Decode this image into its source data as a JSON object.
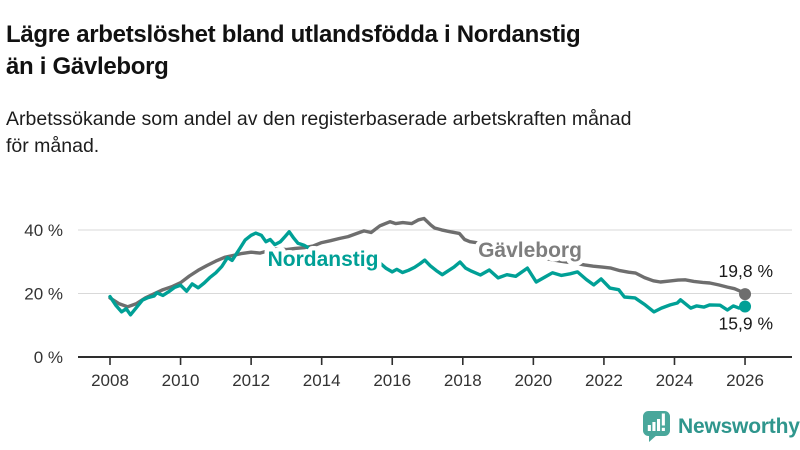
{
  "header": {
    "title_lines": [
      "Lägre arbetslöshet bland utlandsfödda i Nordanstig",
      "än i Gävleborg"
    ],
    "subtitle_lines": [
      "Arbetssökande som andel av den registerbaserade arbetskraften månad",
      "för månad."
    ]
  },
  "branding": {
    "name": "Newsworthy",
    "logo_color": "#2f968d",
    "icon_color": "#49a79b",
    "icon": "newsworthy-speech-bubble-barchart-icon"
  },
  "chart_data": {
    "type": "line",
    "title": "Lägre arbetslöshet bland utlandsfödda i Nordanstig än i Gävleborg",
    "subtitle": "Arbetssökande som andel av den registerbaserade arbetskraften månad för månad.",
    "grid": "horizontal",
    "legend_position": "inline-labels",
    "x_axis": {
      "ticks": [
        2008,
        2010,
        2012,
        2014,
        2016,
        2018,
        2020,
        2022,
        2024,
        2026
      ],
      "range": [
        2007.9,
        2027.3
      ]
    },
    "y_axis": {
      "ticks": [
        {
          "value": 0,
          "label": "0 %"
        },
        {
          "value": 20,
          "label": "20 %"
        },
        {
          "value": 40,
          "label": "40 %"
        }
      ],
      "range": [
        0,
        47
      ]
    },
    "series": [
      {
        "name": "Nordanstig",
        "color": "#00a096",
        "label_color": "#00a096",
        "end_label": "15,9 %",
        "end_value": 15.9,
        "points": [
          [
            2008.0,
            19.0
          ],
          [
            2008.17,
            16.2
          ],
          [
            2008.33,
            14.2
          ],
          [
            2008.46,
            15.2
          ],
          [
            2008.58,
            13.3
          ],
          [
            2008.75,
            15.6
          ],
          [
            2008.92,
            17.9
          ],
          [
            2009.08,
            18.7
          ],
          [
            2009.25,
            19.2
          ],
          [
            2009.33,
            20.2
          ],
          [
            2009.5,
            19.4
          ],
          [
            2009.67,
            20.6
          ],
          [
            2009.83,
            21.9
          ],
          [
            2010.0,
            22.6
          ],
          [
            2010.17,
            20.7
          ],
          [
            2010.33,
            23.0
          ],
          [
            2010.5,
            21.8
          ],
          [
            2010.67,
            23.3
          ],
          [
            2010.83,
            25.0
          ],
          [
            2011.0,
            26.5
          ],
          [
            2011.17,
            28.5
          ],
          [
            2011.33,
            31.3
          ],
          [
            2011.46,
            30.4
          ],
          [
            2011.67,
            34.0
          ],
          [
            2011.83,
            36.8
          ],
          [
            2012.0,
            38.3
          ],
          [
            2012.13,
            39.0
          ],
          [
            2012.29,
            38.3
          ],
          [
            2012.42,
            36.3
          ],
          [
            2012.54,
            37.0
          ],
          [
            2012.67,
            35.4
          ],
          [
            2012.83,
            36.3
          ],
          [
            2012.96,
            37.9
          ],
          [
            2013.08,
            39.4
          ],
          [
            2013.21,
            37.4
          ],
          [
            2013.33,
            35.8
          ],
          [
            2013.5,
            35.2
          ],
          [
            2013.67,
            34.1
          ],
          [
            2013.83,
            33.2
          ],
          [
            2014.0,
            32.4
          ],
          [
            2014.21,
            31.7
          ],
          [
            2014.42,
            31.1
          ],
          [
            2014.63,
            30.5
          ],
          [
            2014.83,
            30.0
          ],
          [
            2015.04,
            29.5
          ],
          [
            2015.25,
            29.2
          ],
          [
            2015.46,
            28.9
          ],
          [
            2015.67,
            29.4
          ],
          [
            2015.83,
            27.9
          ],
          [
            2016.0,
            26.8
          ],
          [
            2016.13,
            27.6
          ],
          [
            2016.29,
            26.6
          ],
          [
            2016.46,
            27.3
          ],
          [
            2016.63,
            28.2
          ],
          [
            2016.79,
            29.4
          ],
          [
            2016.92,
            30.5
          ],
          [
            2017.08,
            28.7
          ],
          [
            2017.25,
            27.2
          ],
          [
            2017.42,
            25.9
          ],
          [
            2017.58,
            27.1
          ],
          [
            2017.75,
            28.3
          ],
          [
            2017.92,
            29.9
          ],
          [
            2018.08,
            28.0
          ],
          [
            2018.25,
            27.0
          ],
          [
            2018.5,
            25.8
          ],
          [
            2018.75,
            27.4
          ],
          [
            2019.0,
            24.9
          ],
          [
            2019.25,
            25.9
          ],
          [
            2019.5,
            25.4
          ],
          [
            2019.83,
            28.0
          ],
          [
            2020.08,
            23.6
          ],
          [
            2020.33,
            25.2
          ],
          [
            2020.54,
            26.5
          ],
          [
            2020.79,
            25.7
          ],
          [
            2021.04,
            26.2
          ],
          [
            2021.25,
            26.8
          ],
          [
            2021.5,
            24.4
          ],
          [
            2021.71,
            22.7
          ],
          [
            2021.92,
            24.6
          ],
          [
            2022.17,
            21.7
          ],
          [
            2022.42,
            21.2
          ],
          [
            2022.58,
            18.9
          ],
          [
            2022.88,
            18.6
          ],
          [
            2023.17,
            16.4
          ],
          [
            2023.42,
            14.2
          ],
          [
            2023.63,
            15.4
          ],
          [
            2023.88,
            16.4
          ],
          [
            2024.08,
            17.0
          ],
          [
            2024.17,
            18.0
          ],
          [
            2024.46,
            15.4
          ],
          [
            2024.63,
            16.1
          ],
          [
            2024.83,
            15.7
          ],
          [
            2025.0,
            16.4
          ],
          [
            2025.29,
            16.3
          ],
          [
            2025.5,
            14.8
          ],
          [
            2025.67,
            16.1
          ],
          [
            2025.83,
            15.4
          ],
          [
            2026.0,
            15.9
          ]
        ]
      },
      {
        "name": "Gävleborg",
        "color": "#6e6e6e",
        "label_color": "#7e7e7e",
        "end_label": "19,8 %",
        "end_value": 19.8,
        "points": [
          [
            2008.0,
            18.6
          ],
          [
            2008.25,
            16.8
          ],
          [
            2008.5,
            15.8
          ],
          [
            2008.75,
            16.8
          ],
          [
            2009.0,
            18.6
          ],
          [
            2009.25,
            19.9
          ],
          [
            2009.5,
            21.2
          ],
          [
            2009.75,
            22.1
          ],
          [
            2010.0,
            23.4
          ],
          [
            2010.25,
            25.5
          ],
          [
            2010.5,
            27.3
          ],
          [
            2010.75,
            28.8
          ],
          [
            2011.0,
            30.2
          ],
          [
            2011.25,
            31.4
          ],
          [
            2011.5,
            32.0
          ],
          [
            2011.75,
            32.6
          ],
          [
            2012.0,
            33.0
          ],
          [
            2012.25,
            32.7
          ],
          [
            2012.5,
            33.5
          ],
          [
            2012.75,
            34.1
          ],
          [
            2013.0,
            33.8
          ],
          [
            2013.25,
            34.2
          ],
          [
            2013.5,
            34.4
          ],
          [
            2013.75,
            34.9
          ],
          [
            2014.0,
            36.0
          ],
          [
            2014.25,
            36.6
          ],
          [
            2014.5,
            37.3
          ],
          [
            2014.75,
            37.9
          ],
          [
            2015.0,
            38.9
          ],
          [
            2015.2,
            39.7
          ],
          [
            2015.4,
            39.2
          ],
          [
            2015.65,
            41.3
          ],
          [
            2015.94,
            42.6
          ],
          [
            2016.1,
            42.0
          ],
          [
            2016.3,
            42.3
          ],
          [
            2016.55,
            42.0
          ],
          [
            2016.75,
            43.2
          ],
          [
            2016.9,
            43.6
          ],
          [
            2017.1,
            41.5
          ],
          [
            2017.2,
            40.6
          ],
          [
            2017.4,
            40.0
          ],
          [
            2017.65,
            39.4
          ],
          [
            2017.9,
            38.9
          ],
          [
            2018.05,
            37.0
          ],
          [
            2018.2,
            36.3
          ],
          [
            2018.45,
            35.9
          ],
          [
            2018.75,
            35.0
          ],
          [
            2019.0,
            34.3
          ],
          [
            2019.25,
            33.6
          ],
          [
            2019.5,
            33.0
          ],
          [
            2019.75,
            32.4
          ],
          [
            2020.0,
            31.8
          ],
          [
            2020.25,
            31.2
          ],
          [
            2020.5,
            30.7
          ],
          [
            2020.75,
            30.2
          ],
          [
            2021.0,
            29.8
          ],
          [
            2021.25,
            29.4
          ],
          [
            2021.45,
            29.0
          ],
          [
            2021.7,
            28.6
          ],
          [
            2021.95,
            28.3
          ],
          [
            2022.2,
            28.0
          ],
          [
            2022.45,
            27.2
          ],
          [
            2022.7,
            26.7
          ],
          [
            2022.9,
            26.4
          ],
          [
            2023.15,
            25.0
          ],
          [
            2023.4,
            24.0
          ],
          [
            2023.6,
            23.6
          ],
          [
            2023.85,
            23.9
          ],
          [
            2024.1,
            24.2
          ],
          [
            2024.3,
            24.3
          ],
          [
            2024.55,
            23.8
          ],
          [
            2024.8,
            23.5
          ],
          [
            2025.0,
            23.3
          ],
          [
            2025.25,
            22.7
          ],
          [
            2025.5,
            22.0
          ],
          [
            2025.7,
            21.5
          ],
          [
            2025.85,
            20.8
          ],
          [
            2026.0,
            19.8
          ]
        ]
      }
    ]
  }
}
